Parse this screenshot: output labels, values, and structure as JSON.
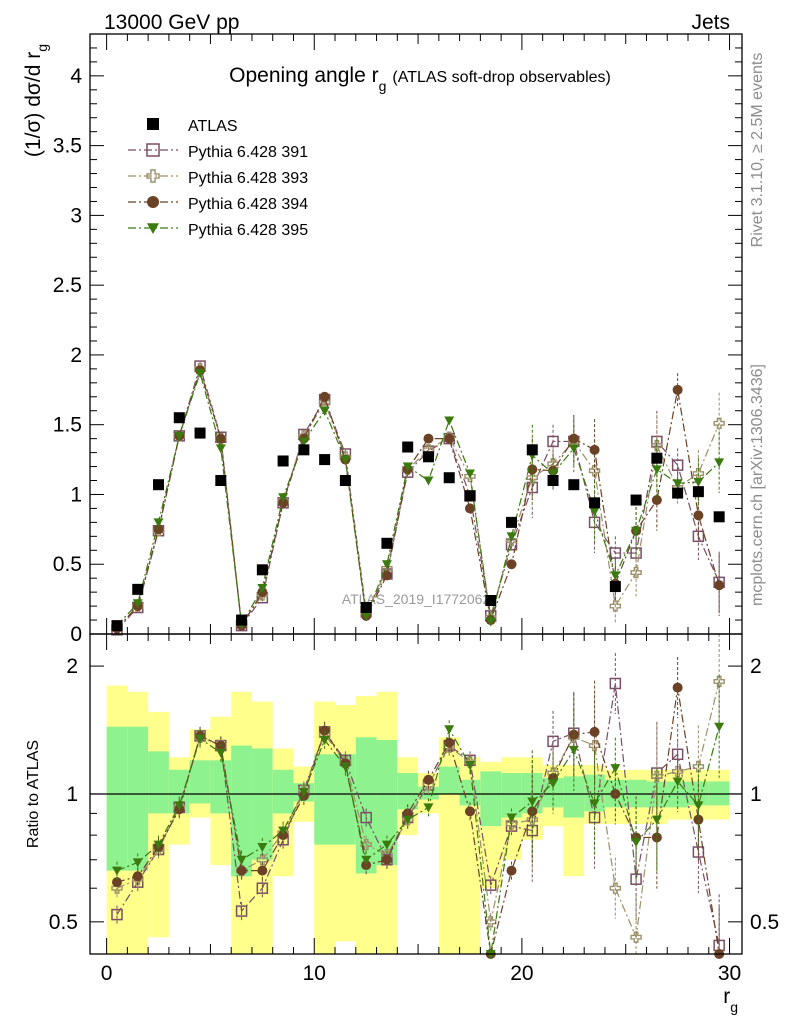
{
  "header": {
    "left": "13000 GeV pp",
    "right": "Jets"
  },
  "side_labels": {
    "rivet": "Rivet 3.1.10, ≥ 2.5M events",
    "mcplots": "mcplots.cern.ch [arXiv:1306.3436]"
  },
  "watermark": "ATLAS_2019_I1772062",
  "chart_data": [
    {
      "type": "scatter",
      "title_main": "Opening angle r",
      "title_sub": "g",
      "title_rest": "(ATLAS soft-drop observables)",
      "ylabel": "(1/σ) dσ/d r",
      "ylabel_sub": "g",
      "ylim": [
        0,
        4.3
      ],
      "xlim": [
        -0.8,
        30.6
      ],
      "yticks": [
        0,
        0.5,
        1,
        1.5,
        2,
        2.5,
        3,
        3.5,
        4
      ],
      "ytick_labels": [
        "0",
        "0.5",
        "1",
        "1.5",
        "2",
        "2.5",
        "3",
        "3.5",
        "4"
      ],
      "legend_position": "top-left",
      "x": [
        0.5,
        1.5,
        2.5,
        3.5,
        4.5,
        5.5,
        6.5,
        7.5,
        8.5,
        9.5,
        10.5,
        11.5,
        12.5,
        13.5,
        14.5,
        15.5,
        16.5,
        17.5,
        18.5,
        19.5,
        20.5,
        21.5,
        22.5,
        23.5,
        24.5,
        25.5,
        26.5,
        27.5,
        28.5,
        29.5
      ],
      "series": [
        {
          "name": "ATLAS",
          "color": "#000000",
          "marker": "square",
          "values": [
            0.06,
            0.32,
            1.07,
            1.55,
            1.44,
            1.1,
            0.1,
            0.46,
            1.24,
            1.32,
            1.25,
            1.1,
            0.19,
            0.65,
            1.34,
            1.27,
            1.12,
            0.99,
            0.24,
            0.8,
            1.32,
            1.1,
            1.07,
            0.94,
            0.34,
            0.96,
            1.26,
            1.01,
            1.02,
            0.84
          ]
        },
        {
          "name": "Pythia 6.428 391",
          "color": "#7a4e66",
          "marker": "open-square",
          "values": [
            0.03,
            0.19,
            0.74,
            1.42,
            1.92,
            1.41,
            0.06,
            0.26,
            0.94,
            1.43,
            1.68,
            1.29,
            0.16,
            0.43,
            1.16,
            1.31,
            1.4,
            0.99,
            0.13,
            0.64,
            1.05,
            1.38,
            1.38,
            0.8,
            0.58,
            0.58,
            1.38,
            1.21,
            0.7,
            0.37
          ]
        },
        {
          "name": "Pythia 6.428 393",
          "color": "#9c8f6a",
          "marker": "open-cross",
          "values": [
            0.04,
            0.2,
            0.74,
            1.42,
            1.9,
            1.4,
            0.07,
            0.28,
            0.95,
            1.42,
            1.66,
            1.27,
            0.14,
            0.47,
            1.18,
            1.32,
            1.41,
            1.13,
            0.12,
            0.67,
            1.12,
            1.22,
            1.38,
            1.17,
            0.2,
            0.44,
            1.35,
            1.05,
            1.15,
            1.51
          ]
        },
        {
          "name": "Pythia 6.428 394",
          "color": "#6b4226",
          "marker": "circle",
          "values": [
            0.04,
            0.2,
            0.75,
            1.42,
            1.89,
            1.4,
            0.06,
            0.3,
            0.94,
            1.4,
            1.7,
            1.25,
            0.13,
            0.42,
            1.18,
            1.4,
            1.4,
            0.9,
            0.1,
            0.5,
            1.18,
            1.17,
            1.4,
            1.32,
            0.36,
            0.74,
            0.96,
            1.75,
            0.85,
            0.35
          ]
        },
        {
          "name": "Pythia 6.428 395",
          "color": "#3b7a0e",
          "marker": "triangle-down",
          "values": [
            0.06,
            0.22,
            0.8,
            1.42,
            1.87,
            1.33,
            0.07,
            0.33,
            0.98,
            1.38,
            1.6,
            1.25,
            0.13,
            0.5,
            1.2,
            1.1,
            1.53,
            1.15,
            0.09,
            0.7,
            1.28,
            1.15,
            1.33,
            0.88,
            0.42,
            0.74,
            1.18,
            1.08,
            1.09,
            1.23
          ]
        }
      ]
    },
    {
      "type": "scatter",
      "ylabel": "Ratio to ATLAS",
      "xlabel": "r",
      "xlabel_sub": "g",
      "ylim": [
        0.42,
        2.38
      ],
      "log_scale": true,
      "xlim": [
        -0.8,
        30.6
      ],
      "xticks": [
        0,
        10,
        20,
        30
      ],
      "xtick_labels": [
        "0",
        "10",
        "20",
        "30"
      ],
      "yticks": [
        0.5,
        1,
        2
      ],
      "ytick_labels": [
        "0.5",
        "1",
        "2"
      ],
      "band_inner_lo": [
        0.66,
        0.66,
        0.9,
        0.9,
        0.95,
        0.9,
        0.64,
        0.7,
        0.9,
        0.96,
        0.76,
        0.76,
        0.65,
        0.68,
        0.92,
        0.97,
        1.0,
        0.94,
        0.84,
        0.88,
        0.9,
        0.93,
        0.88,
        0.91,
        0.93,
        0.93,
        0.93,
        0.93,
        0.94,
        0.94
      ],
      "band_inner_hi": [
        1.44,
        1.44,
        1.26,
        1.14,
        1.2,
        1.2,
        1.3,
        1.28,
        1.14,
        1.06,
        1.24,
        1.24,
        1.36,
        1.34,
        1.12,
        1.04,
        1.16,
        1.08,
        1.13,
        1.12,
        1.12,
        1.09,
        1.1,
        1.11,
        1.08,
        1.08,
        1.07,
        1.07,
        1.07,
        1.07
      ],
      "band_outer_lo": [
        0.36,
        0.36,
        0.46,
        0.76,
        0.88,
        0.68,
        0.36,
        0.36,
        0.64,
        0.86,
        0.37,
        0.45,
        0.37,
        0.38,
        0.8,
        0.9,
        0.36,
        0.36,
        0.6,
        0.7,
        0.78,
        0.84,
        0.64,
        0.85,
        0.85,
        0.85,
        0.85,
        0.87,
        0.87,
        0.87
      ],
      "band_outer_hi": [
        1.8,
        1.74,
        1.56,
        1.22,
        1.42,
        1.52,
        1.74,
        1.65,
        1.28,
        1.16,
        1.65,
        1.62,
        1.7,
        1.74,
        1.22,
        1.12,
        1.36,
        1.22,
        1.19,
        1.22,
        1.22,
        1.17,
        1.17,
        1.17,
        1.14,
        1.14,
        1.14,
        1.14,
        1.14,
        1.14
      ],
      "series": [
        {
          "name": "Pythia 6.428 391",
          "values": [
            0.52,
            0.62,
            0.74,
            0.93,
            1.37,
            1.3,
            0.53,
            0.6,
            0.78,
            1.02,
            1.4,
            1.2,
            0.88,
            0.7,
            0.88,
            1.05,
            1.3,
            1.2,
            0.61,
            0.84,
            0.82,
            1.33,
            1.39,
            0.88,
            1.82,
            0.63,
            1.12,
            1.24,
            0.73,
            0.44
          ]
        },
        {
          "name": "Pythia 6.428 393",
          "values": [
            0.6,
            0.63,
            0.74,
            0.93,
            1.36,
            1.3,
            0.66,
            0.7,
            0.81,
            1.02,
            1.38,
            1.19,
            0.76,
            0.72,
            0.87,
            1.05,
            1.29,
            1.19,
            0.5,
            0.85,
            0.87,
            1.12,
            1.36,
            1.3,
            0.6,
            0.46,
            1.1,
            1.13,
            1.16,
            1.84
          ]
        },
        {
          "name": "Pythia 6.428 394",
          "values": [
            0.62,
            0.64,
            0.75,
            0.92,
            1.37,
            1.3,
            0.66,
            0.66,
            0.8,
            0.99,
            1.41,
            1.18,
            0.68,
            0.7,
            0.9,
            1.08,
            1.32,
            0.91,
            0.36,
            0.66,
            0.91,
            1.09,
            1.38,
            1.4,
            1.0,
            0.79,
            0.79,
            1.78,
            0.87,
            0.41
          ]
        },
        {
          "name": "Pythia 6.428 395",
          "values": [
            0.66,
            0.69,
            0.76,
            0.94,
            1.35,
            1.25,
            0.7,
            0.75,
            0.82,
            1.01,
            1.34,
            1.16,
            0.7,
            0.76,
            0.87,
            0.93,
            1.42,
            1.17,
            0.37,
            0.88,
            0.96,
            1.06,
            1.27,
            0.95,
            1.15,
            0.77,
            0.87,
            1.07,
            0.94,
            1.44
          ]
        }
      ]
    }
  ]
}
